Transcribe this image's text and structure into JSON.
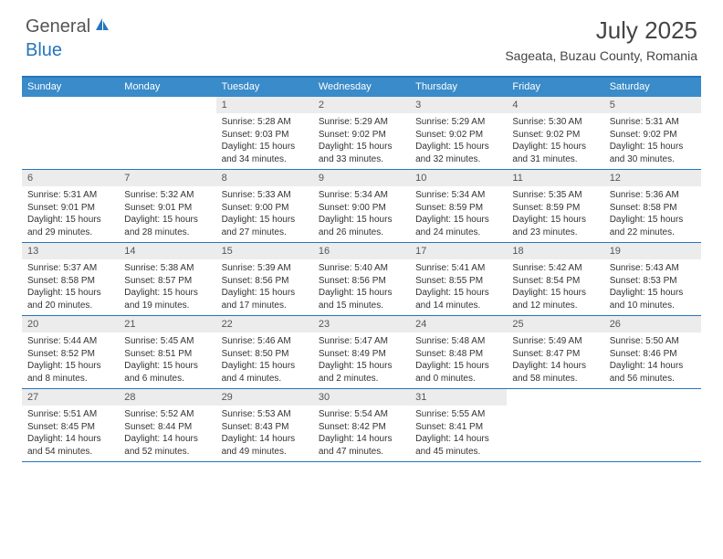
{
  "logo": {
    "text_general": "General",
    "text_blue": "Blue"
  },
  "title": "July 2025",
  "location": "Sageata, Buzau County, Romania",
  "colors": {
    "accent": "#3a8bc9",
    "rule": "#2676bb",
    "daynum_bg": "#ececec",
    "text": "#333333",
    "muted": "#555555",
    "background": "#ffffff"
  },
  "weekdays": [
    "Sunday",
    "Monday",
    "Tuesday",
    "Wednesday",
    "Thursday",
    "Friday",
    "Saturday"
  ],
  "layout": {
    "columns": 7,
    "first_weekday_index_of_day1": 2,
    "days_in_month": 31
  },
  "days": [
    {
      "n": 1,
      "sunrise": "5:28 AM",
      "sunset": "9:03 PM",
      "daylight": "15 hours and 34 minutes."
    },
    {
      "n": 2,
      "sunrise": "5:29 AM",
      "sunset": "9:02 PM",
      "daylight": "15 hours and 33 minutes."
    },
    {
      "n": 3,
      "sunrise": "5:29 AM",
      "sunset": "9:02 PM",
      "daylight": "15 hours and 32 minutes."
    },
    {
      "n": 4,
      "sunrise": "5:30 AM",
      "sunset": "9:02 PM",
      "daylight": "15 hours and 31 minutes."
    },
    {
      "n": 5,
      "sunrise": "5:31 AM",
      "sunset": "9:02 PM",
      "daylight": "15 hours and 30 minutes."
    },
    {
      "n": 6,
      "sunrise": "5:31 AM",
      "sunset": "9:01 PM",
      "daylight": "15 hours and 29 minutes."
    },
    {
      "n": 7,
      "sunrise": "5:32 AM",
      "sunset": "9:01 PM",
      "daylight": "15 hours and 28 minutes."
    },
    {
      "n": 8,
      "sunrise": "5:33 AM",
      "sunset": "9:00 PM",
      "daylight": "15 hours and 27 minutes."
    },
    {
      "n": 9,
      "sunrise": "5:34 AM",
      "sunset": "9:00 PM",
      "daylight": "15 hours and 26 minutes."
    },
    {
      "n": 10,
      "sunrise": "5:34 AM",
      "sunset": "8:59 PM",
      "daylight": "15 hours and 24 minutes."
    },
    {
      "n": 11,
      "sunrise": "5:35 AM",
      "sunset": "8:59 PM",
      "daylight": "15 hours and 23 minutes."
    },
    {
      "n": 12,
      "sunrise": "5:36 AM",
      "sunset": "8:58 PM",
      "daylight": "15 hours and 22 minutes."
    },
    {
      "n": 13,
      "sunrise": "5:37 AM",
      "sunset": "8:58 PM",
      "daylight": "15 hours and 20 minutes."
    },
    {
      "n": 14,
      "sunrise": "5:38 AM",
      "sunset": "8:57 PM",
      "daylight": "15 hours and 19 minutes."
    },
    {
      "n": 15,
      "sunrise": "5:39 AM",
      "sunset": "8:56 PM",
      "daylight": "15 hours and 17 minutes."
    },
    {
      "n": 16,
      "sunrise": "5:40 AM",
      "sunset": "8:56 PM",
      "daylight": "15 hours and 15 minutes."
    },
    {
      "n": 17,
      "sunrise": "5:41 AM",
      "sunset": "8:55 PM",
      "daylight": "15 hours and 14 minutes."
    },
    {
      "n": 18,
      "sunrise": "5:42 AM",
      "sunset": "8:54 PM",
      "daylight": "15 hours and 12 minutes."
    },
    {
      "n": 19,
      "sunrise": "5:43 AM",
      "sunset": "8:53 PM",
      "daylight": "15 hours and 10 minutes."
    },
    {
      "n": 20,
      "sunrise": "5:44 AM",
      "sunset": "8:52 PM",
      "daylight": "15 hours and 8 minutes."
    },
    {
      "n": 21,
      "sunrise": "5:45 AM",
      "sunset": "8:51 PM",
      "daylight": "15 hours and 6 minutes."
    },
    {
      "n": 22,
      "sunrise": "5:46 AM",
      "sunset": "8:50 PM",
      "daylight": "15 hours and 4 minutes."
    },
    {
      "n": 23,
      "sunrise": "5:47 AM",
      "sunset": "8:49 PM",
      "daylight": "15 hours and 2 minutes."
    },
    {
      "n": 24,
      "sunrise": "5:48 AM",
      "sunset": "8:48 PM",
      "daylight": "15 hours and 0 minutes."
    },
    {
      "n": 25,
      "sunrise": "5:49 AM",
      "sunset": "8:47 PM",
      "daylight": "14 hours and 58 minutes."
    },
    {
      "n": 26,
      "sunrise": "5:50 AM",
      "sunset": "8:46 PM",
      "daylight": "14 hours and 56 minutes."
    },
    {
      "n": 27,
      "sunrise": "5:51 AM",
      "sunset": "8:45 PM",
      "daylight": "14 hours and 54 minutes."
    },
    {
      "n": 28,
      "sunrise": "5:52 AM",
      "sunset": "8:44 PM",
      "daylight": "14 hours and 52 minutes."
    },
    {
      "n": 29,
      "sunrise": "5:53 AM",
      "sunset": "8:43 PM",
      "daylight": "14 hours and 49 minutes."
    },
    {
      "n": 30,
      "sunrise": "5:54 AM",
      "sunset": "8:42 PM",
      "daylight": "14 hours and 47 minutes."
    },
    {
      "n": 31,
      "sunrise": "5:55 AM",
      "sunset": "8:41 PM",
      "daylight": "14 hours and 45 minutes."
    }
  ],
  "labels": {
    "sunrise": "Sunrise:",
    "sunset": "Sunset:",
    "daylight": "Daylight:"
  }
}
